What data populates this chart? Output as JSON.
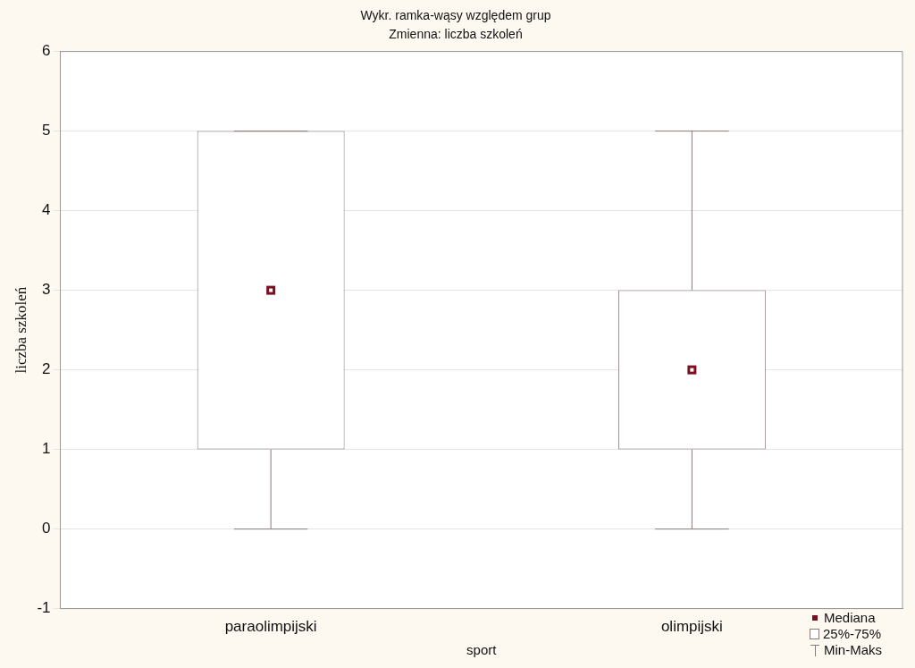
{
  "chart_data": {
    "type": "box",
    "title": "Wykr. ramka-wąsy względem grup",
    "subtitle": "Zmienna: liczba szkoleń",
    "xlabel": "sport",
    "ylabel": "liczba szkoleń",
    "categories": [
      "paraolimpijski",
      "olimpijski"
    ],
    "boxes": [
      {
        "low": 0,
        "q1": 1,
        "median": 3,
        "q3": 5,
        "high": 5
      },
      {
        "low": 0,
        "q1": 1,
        "median": 2,
        "q3": 3,
        "high": 5
      }
    ],
    "color": "#8a7b7a",
    "ylim": [
      -1,
      6
    ],
    "yticks": [
      -1,
      0,
      1,
      2,
      3,
      4,
      5,
      6
    ],
    "grid": "y",
    "annotations": [
      "Mediana",
      "25%-75%",
      "Min-Maks"
    ]
  }
}
